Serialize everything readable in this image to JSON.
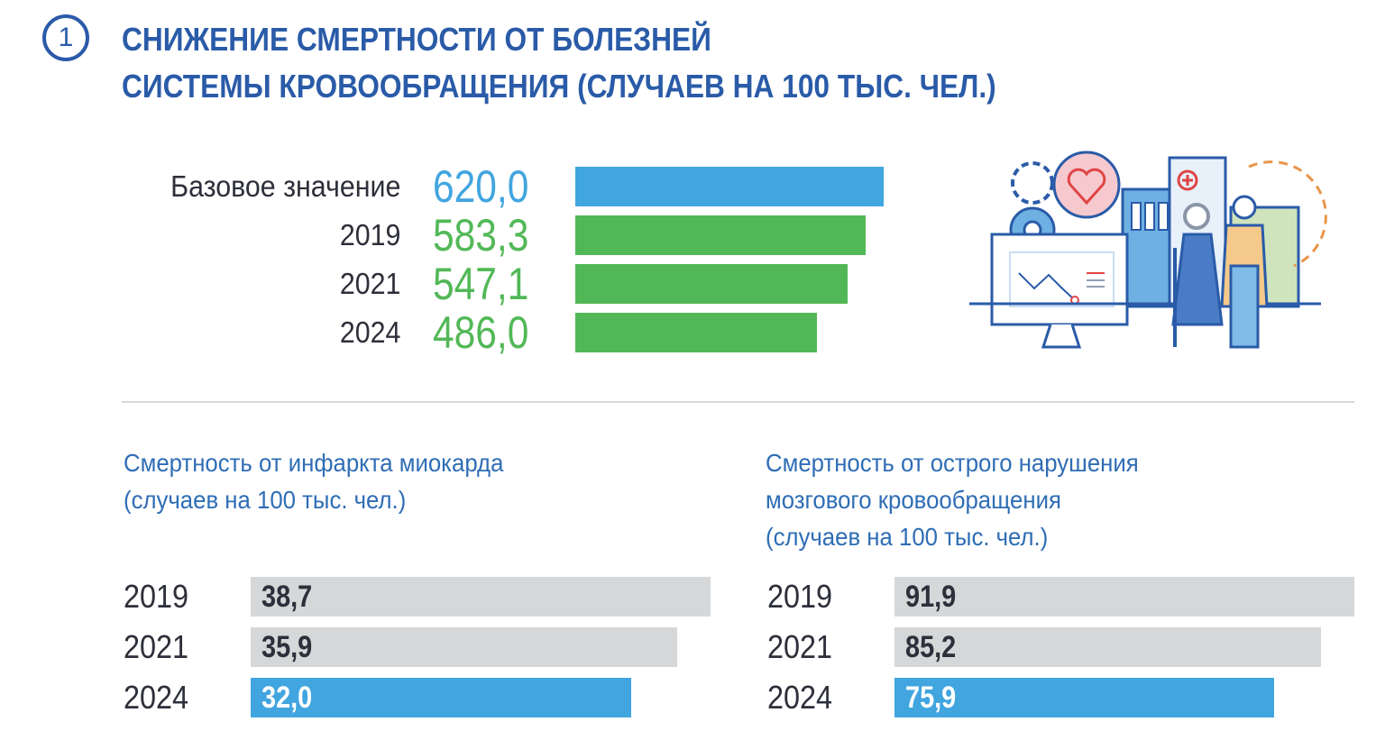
{
  "header": {
    "number": "1",
    "title_line1": "СНИЖЕНИЕ СМЕРТНОСТИ ОТ БОЛЕЗНЕЙ",
    "title_line2": "СИСТЕМЫ КРОВООБРАЩЕНИЯ (СЛУЧАЕВ НА 100 ТЫС. ЧЕЛ.)"
  },
  "colors": {
    "title": "#2a5ba8",
    "blue": "#41a5df",
    "green": "#52b857",
    "gray": "#d6d7d9",
    "text": "#2d2f3a",
    "subtitle": "#2f6db5",
    "value_light": "#ffffff",
    "value_dark": "#2d2f3a"
  },
  "illustration": "healthcare-illustration: gears with heart, computer monitor with declining chart, hospital building, elderly couple",
  "chart_data": [
    {
      "type": "bar",
      "orientation": "horizontal",
      "title": "СНИЖЕНИЕ СМЕРТНОСТИ ОТ БОЛЕЗНЕЙ СИСТЕМЫ КРОВООБРАЩЕНИЯ (СЛУЧАЕВ НА 100 ТЫС. ЧЕЛ.)",
      "categories": [
        "Базовое значение",
        "2019",
        "2021",
        "2024"
      ],
      "values": [
        620.0,
        583.3,
        547.1,
        486.0
      ],
      "labels": [
        "620,0",
        "583,3",
        "547,1",
        "486,0"
      ],
      "bar_colors": [
        "#41a5df",
        "#52b857",
        "#52b857",
        "#52b857"
      ],
      "xlim": [
        0,
        620
      ]
    },
    {
      "type": "bar",
      "orientation": "horizontal",
      "title": "Смертность от инфаркта миокарда",
      "subtitle": "(случаев на 100 тыс. чел.)",
      "categories": [
        "2019",
        "2021",
        "2024"
      ],
      "values": [
        38.7,
        35.9,
        32.0
      ],
      "labels": [
        "38,7",
        "35,9",
        "32,0"
      ],
      "bar_colors": [
        "#d6d7d9",
        "#d6d7d9",
        "#41a5df"
      ],
      "xlim": [
        0,
        38.7
      ]
    },
    {
      "type": "bar",
      "orientation": "horizontal",
      "title": "Смертность от острого нарушения",
      "title_line2": "мозгового кровообращения",
      "subtitle": "(случаев на 100 тыс. чел.)",
      "categories": [
        "2019",
        "2021",
        "2024"
      ],
      "values": [
        91.9,
        85.2,
        75.9
      ],
      "labels": [
        "91,9",
        "85,2",
        "75,9"
      ],
      "bar_colors": [
        "#d6d7d9",
        "#d6d7d9",
        "#41a5df"
      ],
      "xlim": [
        0,
        91.9
      ]
    }
  ]
}
